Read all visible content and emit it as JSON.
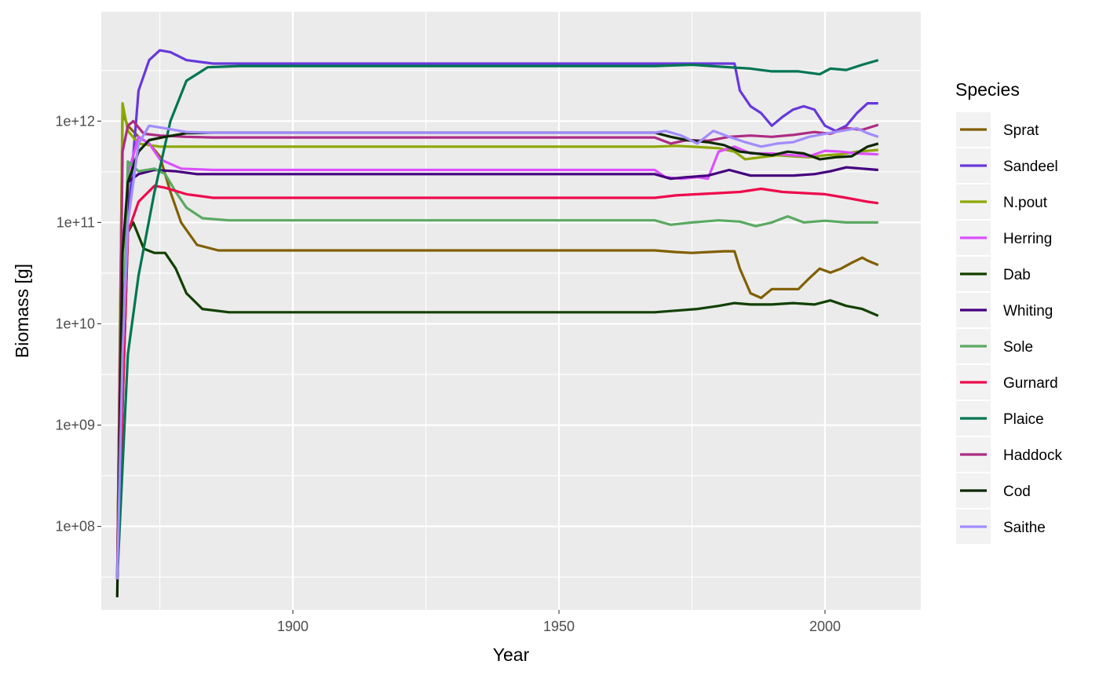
{
  "chart_data": {
    "type": "line",
    "xlabel": "Year",
    "ylabel": "Biomass [g]",
    "y_scale": "log10",
    "xlim": [
      1864,
      2018
    ],
    "ylim": [
      15000000,
      12000000000000
    ],
    "x_ticks": [
      1900,
      1950,
      2000
    ],
    "x_tick_labels": [
      "1900",
      "1950",
      "2000"
    ],
    "y_ticks": [
      100000000,
      1000000000,
      10000000000,
      100000000000,
      1000000000000
    ],
    "y_tick_labels": [
      "1e+08",
      "1e+09",
      "1e+10",
      "1e+11",
      "1e+12"
    ],
    "grid": true,
    "legend": {
      "title": "Species",
      "position": "right"
    },
    "series": [
      {
        "name": "Sprat",
        "color": "#815f00",
        "points": [
          [
            1867,
            30000000
          ],
          [
            1868,
            1200000000000
          ],
          [
            1869,
            900000000000
          ],
          [
            1871,
            700000000000
          ],
          [
            1873,
            600000000000
          ],
          [
            1875,
            450000000000
          ],
          [
            1877,
            200000000000
          ],
          [
            1879,
            100000000000
          ],
          [
            1882,
            60000000000
          ],
          [
            1886,
            53000000000
          ],
          [
            1968,
            53000000000
          ],
          [
            1972,
            51000000000
          ],
          [
            1975,
            50000000000
          ],
          [
            1978,
            51000000000
          ],
          [
            1981,
            52000000000
          ],
          [
            1983,
            52000000000
          ],
          [
            1984,
            35000000000
          ],
          [
            1986,
            20000000000
          ],
          [
            1988,
            18000000000
          ],
          [
            1990,
            22000000000
          ],
          [
            1993,
            22000000000
          ],
          [
            1995,
            22000000000
          ],
          [
            1997,
            28000000000
          ],
          [
            1999,
            35000000000
          ],
          [
            2001,
            32000000000
          ],
          [
            2003,
            35000000000
          ],
          [
            2005,
            40000000000
          ],
          [
            2007,
            45000000000
          ],
          [
            2008,
            42000000000
          ],
          [
            2010,
            38000000000
          ]
        ]
      },
      {
        "name": "Sandeel",
        "color": "#6639da",
        "points": [
          [
            1867,
            30000000
          ],
          [
            1868,
            10000000000
          ],
          [
            1869,
            100000000000
          ],
          [
            1871,
            2000000000000
          ],
          [
            1873,
            4000000000000
          ],
          [
            1875,
            5000000000000
          ],
          [
            1877,
            4800000000000
          ],
          [
            1880,
            4000000000000
          ],
          [
            1885,
            3700000000000
          ],
          [
            1968,
            3700000000000
          ],
          [
            1975,
            3700000000000
          ],
          [
            1983,
            3700000000000
          ],
          [
            1984,
            2000000000000
          ],
          [
            1986,
            1400000000000
          ],
          [
            1988,
            1200000000000
          ],
          [
            1990,
            900000000000
          ],
          [
            1992,
            1100000000000
          ],
          [
            1994,
            1300000000000
          ],
          [
            1996,
            1400000000000
          ],
          [
            1998,
            1300000000000
          ],
          [
            2000,
            900000000000
          ],
          [
            2002,
            800000000000
          ],
          [
            2004,
            900000000000
          ],
          [
            2006,
            1200000000000
          ],
          [
            2008,
            1500000000000
          ],
          [
            2010,
            1500000000000
          ]
        ]
      },
      {
        "name": "N.pout",
        "color": "#8da700",
        "points": [
          [
            1867,
            30000000
          ],
          [
            1868,
            1500000000000
          ],
          [
            1869,
            800000000000
          ],
          [
            1871,
            600000000000
          ],
          [
            1875,
            560000000000
          ],
          [
            1968,
            560000000000
          ],
          [
            1972,
            570000000000
          ],
          [
            1975,
            560000000000
          ],
          [
            1980,
            540000000000
          ],
          [
            1983,
            500000000000
          ],
          [
            1985,
            420000000000
          ],
          [
            1988,
            440000000000
          ],
          [
            1991,
            460000000000
          ],
          [
            1994,
            450000000000
          ],
          [
            1997,
            440000000000
          ],
          [
            2000,
            460000000000
          ],
          [
            2003,
            470000000000
          ],
          [
            2006,
            500000000000
          ],
          [
            2010,
            520000000000
          ]
        ]
      },
      {
        "name": "Herring",
        "color": "#dc4fff",
        "points": [
          [
            1867,
            30000000
          ],
          [
            1869,
            300000000000
          ],
          [
            1871,
            700000000000
          ],
          [
            1873,
            600000000000
          ],
          [
            1875,
            420000000000
          ],
          [
            1879,
            340000000000
          ],
          [
            1885,
            330000000000
          ],
          [
            1968,
            330000000000
          ],
          [
            1970,
            280000000000
          ],
          [
            1973,
            270000000000
          ],
          [
            1976,
            280000000000
          ],
          [
            1978,
            270000000000
          ],
          [
            1980,
            500000000000
          ],
          [
            1983,
            560000000000
          ],
          [
            1986,
            480000000000
          ],
          [
            1990,
            480000000000
          ],
          [
            1994,
            460000000000
          ],
          [
            1997,
            450000000000
          ],
          [
            2000,
            510000000000
          ],
          [
            2003,
            500000000000
          ],
          [
            2006,
            480000000000
          ],
          [
            2010,
            470000000000
          ]
        ]
      },
      {
        "name": "Dab",
        "color": "#124000",
        "points": [
          [
            1867,
            30000000
          ],
          [
            1869,
            80000000000
          ],
          [
            1870,
            100000000000
          ],
          [
            1872,
            55000000000
          ],
          [
            1874,
            50000000000
          ],
          [
            1876,
            50000000000
          ],
          [
            1878,
            35000000000
          ],
          [
            1880,
            20000000000
          ],
          [
            1883,
            14000000000
          ],
          [
            1888,
            13000000000
          ],
          [
            1968,
            13000000000
          ],
          [
            1972,
            13500000000
          ],
          [
            1976,
            14000000000
          ],
          [
            1980,
            15000000000
          ],
          [
            1983,
            16000000000
          ],
          [
            1986,
            15500000000
          ],
          [
            1990,
            15500000000
          ],
          [
            1994,
            16000000000
          ],
          [
            1998,
            15500000000
          ],
          [
            2001,
            17000000000
          ],
          [
            2004,
            15000000000
          ],
          [
            2007,
            14000000000
          ],
          [
            2010,
            12000000000
          ]
        ]
      },
      {
        "name": "Whiting",
        "color": "#44007e",
        "points": [
          [
            1867,
            30000000
          ],
          [
            1869,
            250000000000
          ],
          [
            1871,
            300000000000
          ],
          [
            1874,
            330000000000
          ],
          [
            1878,
            320000000000
          ],
          [
            1882,
            300000000000
          ],
          [
            1968,
            300000000000
          ],
          [
            1971,
            270000000000
          ],
          [
            1974,
            280000000000
          ],
          [
            1978,
            290000000000
          ],
          [
            1982,
            330000000000
          ],
          [
            1986,
            290000000000
          ],
          [
            1990,
            290000000000
          ],
          [
            1994,
            290000000000
          ],
          [
            1998,
            300000000000
          ],
          [
            2001,
            320000000000
          ],
          [
            2004,
            350000000000
          ],
          [
            2007,
            340000000000
          ],
          [
            2010,
            330000000000
          ]
        ]
      },
      {
        "name": "Sole",
        "color": "#5ba962",
        "points": [
          [
            1867,
            30000000
          ],
          [
            1869,
            400000000000
          ],
          [
            1871,
            320000000000
          ],
          [
            1874,
            340000000000
          ],
          [
            1876,
            300000000000
          ],
          [
            1878,
            200000000000
          ],
          [
            1880,
            140000000000
          ],
          [
            1883,
            110000000000
          ],
          [
            1888,
            105000000000
          ],
          [
            1968,
            105000000000
          ],
          [
            1971,
            95000000000
          ],
          [
            1975,
            100000000000
          ],
          [
            1980,
            105000000000
          ],
          [
            1984,
            102000000000
          ],
          [
            1987,
            92000000000
          ],
          [
            1990,
            100000000000
          ],
          [
            1993,
            115000000000
          ],
          [
            1996,
            100000000000
          ],
          [
            2000,
            104000000000
          ],
          [
            2004,
            100000000000
          ],
          [
            2010,
            100000000000
          ]
        ]
      },
      {
        "name": "Gurnard",
        "color": "#ed0a4c",
        "points": [
          [
            1867,
            30000000
          ],
          [
            1869,
            80000000000
          ],
          [
            1871,
            160000000000
          ],
          [
            1874,
            230000000000
          ],
          [
            1876,
            220000000000
          ],
          [
            1880,
            190000000000
          ],
          [
            1885,
            175000000000
          ],
          [
            1968,
            175000000000
          ],
          [
            1972,
            185000000000
          ],
          [
            1976,
            190000000000
          ],
          [
            1980,
            195000000000
          ],
          [
            1984,
            200000000000
          ],
          [
            1988,
            215000000000
          ],
          [
            1992,
            200000000000
          ],
          [
            1996,
            195000000000
          ],
          [
            2000,
            190000000000
          ],
          [
            2004,
            175000000000
          ],
          [
            2008,
            160000000000
          ],
          [
            2010,
            155000000000
          ]
        ]
      },
      {
        "name": "Plaice",
        "color": "#007553",
        "points": [
          [
            1867,
            30000000
          ],
          [
            1869,
            5000000000
          ],
          [
            1871,
            30000000000
          ],
          [
            1874,
            200000000000
          ],
          [
            1877,
            1000000000000
          ],
          [
            1880,
            2500000000000
          ],
          [
            1884,
            3400000000000
          ],
          [
            1890,
            3500000000000
          ],
          [
            1968,
            3500000000000
          ],
          [
            1975,
            3600000000000
          ],
          [
            1982,
            3400000000000
          ],
          [
            1986,
            3300000000000
          ],
          [
            1990,
            3100000000000
          ],
          [
            1995,
            3100000000000
          ],
          [
            1999,
            2900000000000
          ],
          [
            2001,
            3300000000000
          ],
          [
            2004,
            3200000000000
          ],
          [
            2007,
            3600000000000
          ],
          [
            2010,
            4000000000000
          ]
        ]
      },
      {
        "name": "Haddock",
        "color": "#ad2b83",
        "points": [
          [
            1867,
            30000000
          ],
          [
            1868,
            500000000000
          ],
          [
            1869,
            900000000000
          ],
          [
            1870,
            1000000000000
          ],
          [
            1872,
            750000000000
          ],
          [
            1875,
            720000000000
          ],
          [
            1880,
            700000000000
          ],
          [
            1885,
            690000000000
          ],
          [
            1968,
            690000000000
          ],
          [
            1971,
            600000000000
          ],
          [
            1974,
            650000000000
          ],
          [
            1978,
            640000000000
          ],
          [
            1982,
            700000000000
          ],
          [
            1986,
            720000000000
          ],
          [
            1990,
            700000000000
          ],
          [
            1994,
            730000000000
          ],
          [
            1998,
            780000000000
          ],
          [
            2001,
            750000000000
          ],
          [
            2004,
            850000000000
          ],
          [
            2007,
            820000000000
          ],
          [
            2010,
            920000000000
          ]
        ]
      },
      {
        "name": "Cod",
        "color": "#0c2700",
        "points": [
          [
            1867,
            20000000
          ],
          [
            1868,
            50000000000
          ],
          [
            1869,
            250000000000
          ],
          [
            1871,
            500000000000
          ],
          [
            1873,
            650000000000
          ],
          [
            1876,
            700000000000
          ],
          [
            1880,
            760000000000
          ],
          [
            1885,
            770000000000
          ],
          [
            1968,
            770000000000
          ],
          [
            1971,
            700000000000
          ],
          [
            1974,
            650000000000
          ],
          [
            1978,
            620000000000
          ],
          [
            1981,
            580000000000
          ],
          [
            1984,
            500000000000
          ],
          [
            1987,
            480000000000
          ],
          [
            1990,
            460000000000
          ],
          [
            1993,
            500000000000
          ],
          [
            1996,
            480000000000
          ],
          [
            1999,
            420000000000
          ],
          [
            2002,
            440000000000
          ],
          [
            2005,
            450000000000
          ],
          [
            2008,
            560000000000
          ],
          [
            2010,
            600000000000
          ]
        ]
      },
      {
        "name": "Saithe",
        "color": "#a28cff",
        "points": [
          [
            1867,
            30000000
          ],
          [
            1868,
            5000000000
          ],
          [
            1869,
            100000000000
          ],
          [
            1871,
            600000000000
          ],
          [
            1873,
            900000000000
          ],
          [
            1876,
            850000000000
          ],
          [
            1880,
            780000000000
          ],
          [
            1885,
            770000000000
          ],
          [
            1968,
            770000000000
          ],
          [
            1970,
            800000000000
          ],
          [
            1973,
            720000000000
          ],
          [
            1976,
            600000000000
          ],
          [
            1979,
            800000000000
          ],
          [
            1982,
            700000000000
          ],
          [
            1985,
            620000000000
          ],
          [
            1988,
            560000000000
          ],
          [
            1991,
            600000000000
          ],
          [
            1994,
            620000000000
          ],
          [
            1997,
            700000000000
          ],
          [
            2000,
            750000000000
          ],
          [
            2003,
            800000000000
          ],
          [
            2006,
            850000000000
          ],
          [
            2008,
            760000000000
          ],
          [
            2010,
            700000000000
          ]
        ]
      }
    ]
  }
}
